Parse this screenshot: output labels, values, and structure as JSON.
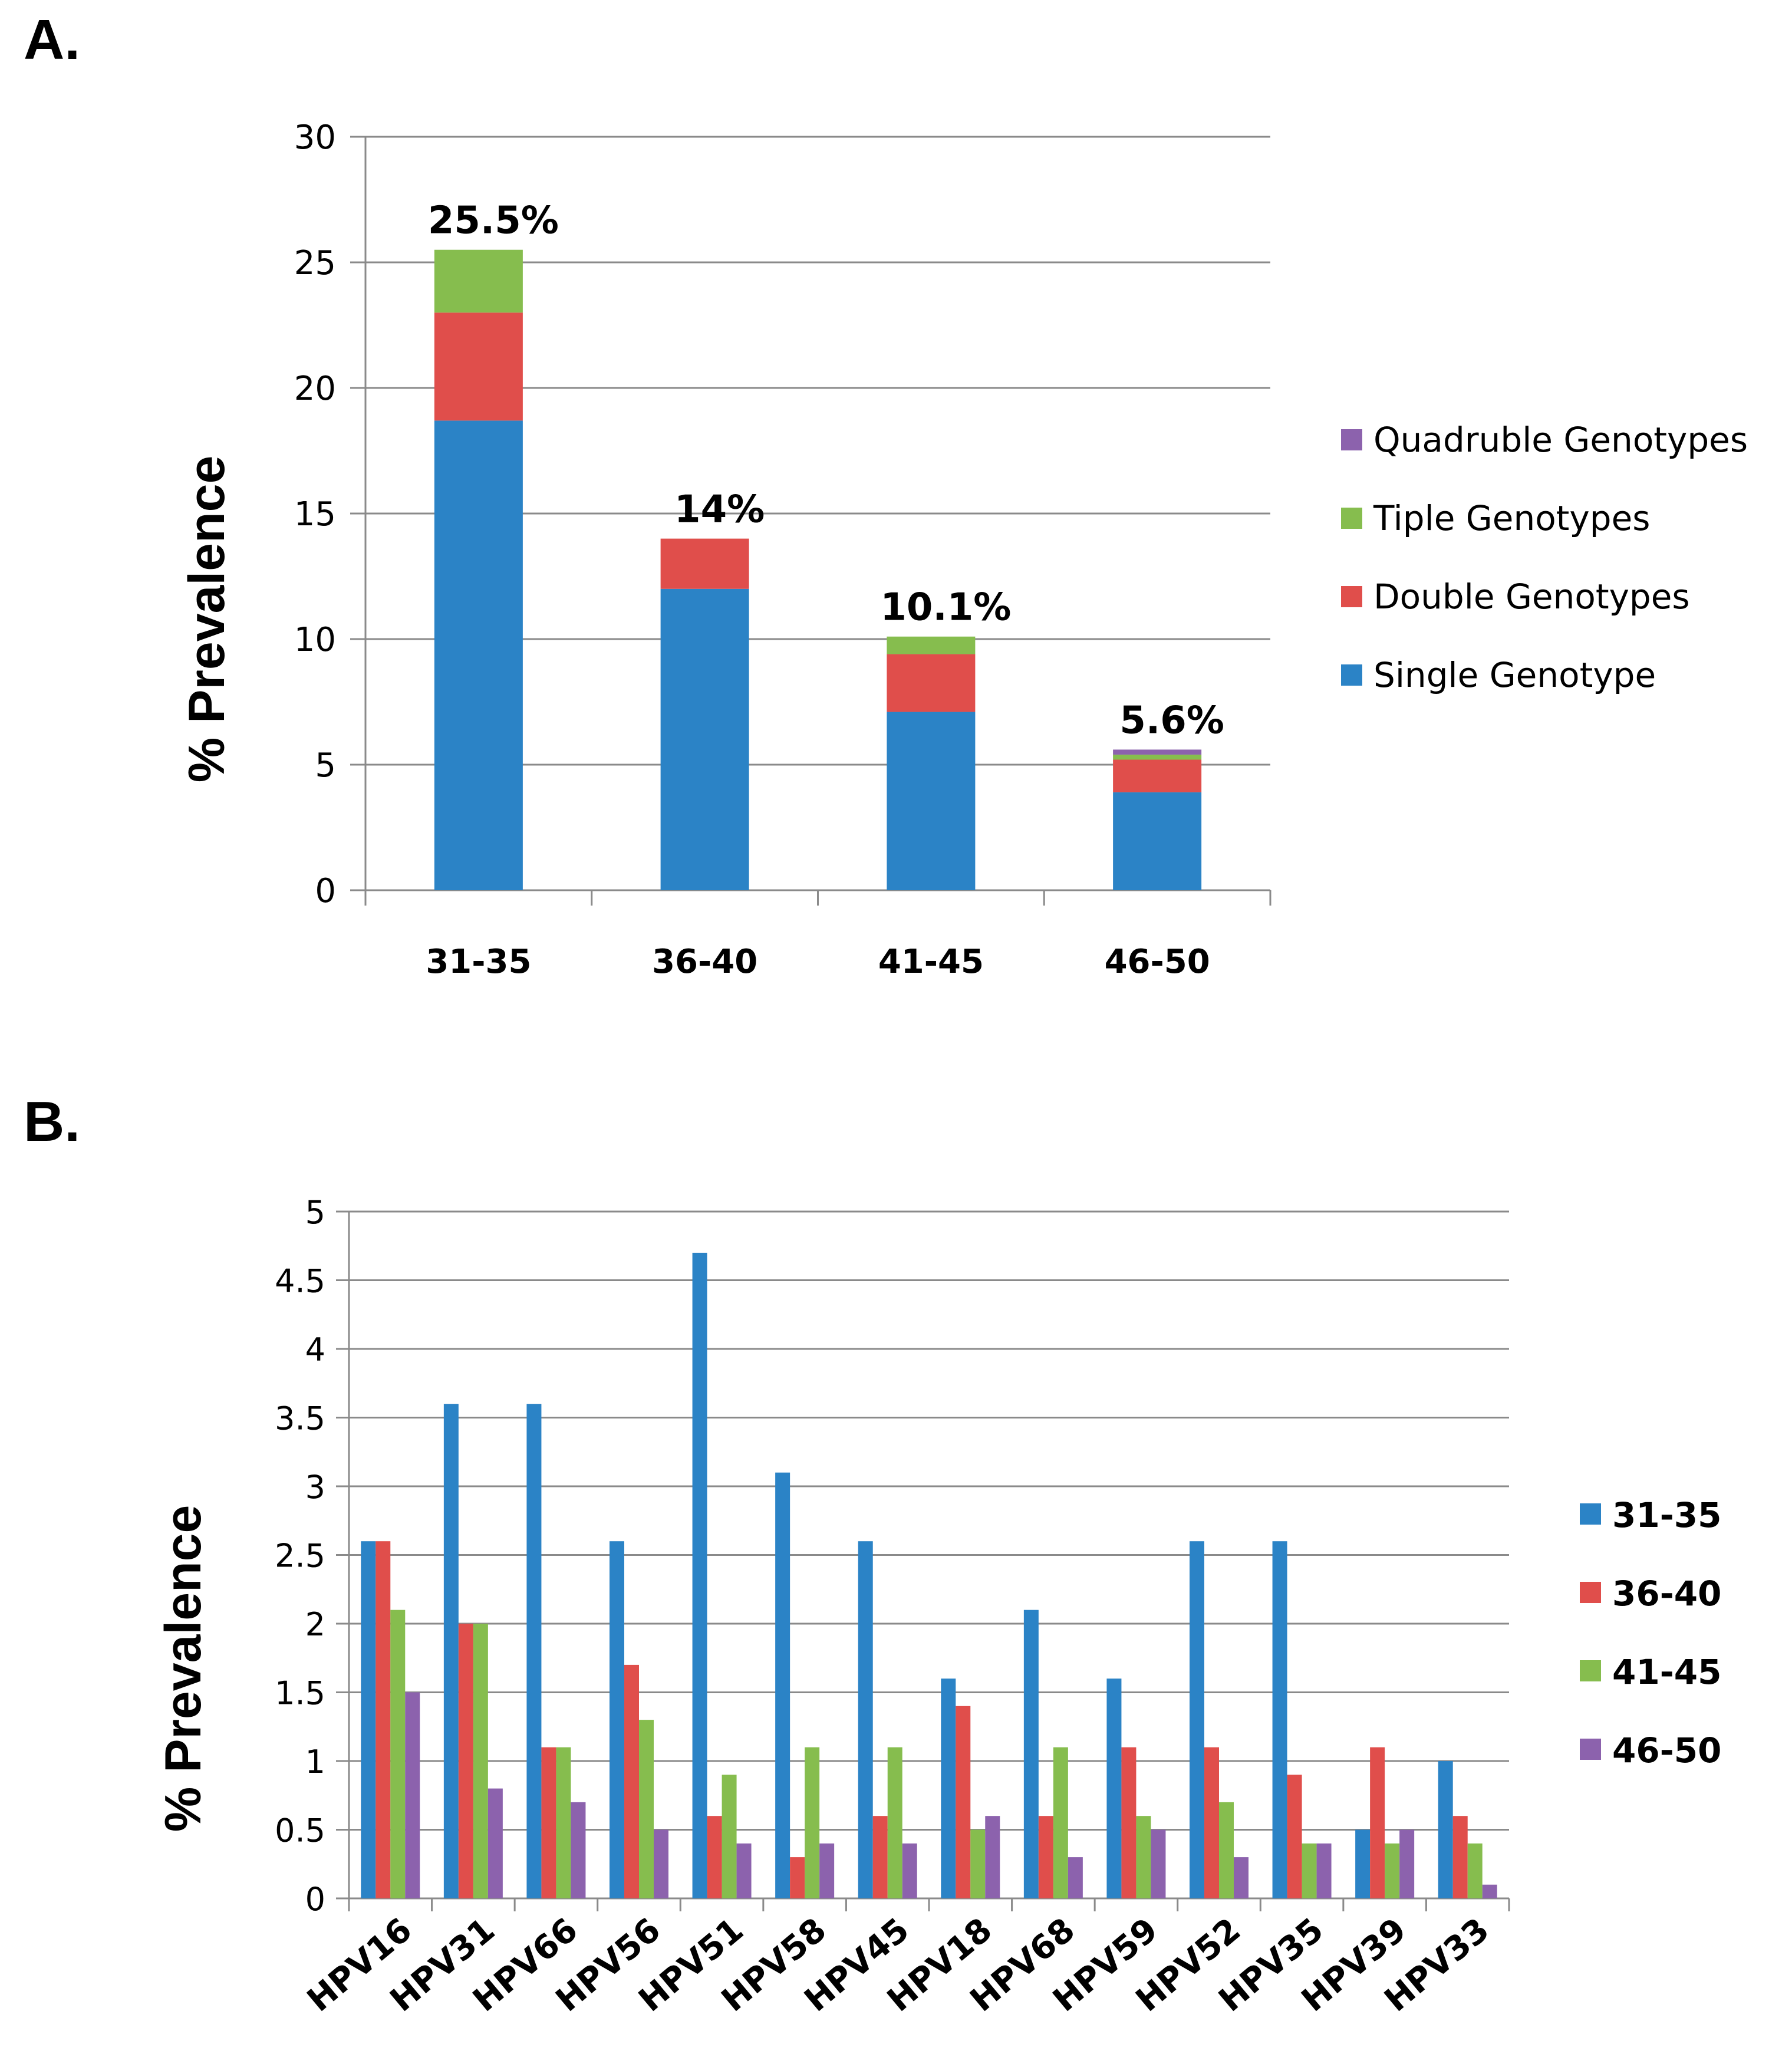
{
  "chart_data": [
    {
      "panel_label": "A.",
      "type": "bar",
      "stacked": true,
      "categories": [
        "31-35",
        "36-40",
        "41-45",
        "46-50"
      ],
      "series": [
        {
          "name": "Single Genotype",
          "color": "#2b83c6",
          "values": [
            18.7,
            12.0,
            7.1,
            3.9
          ]
        },
        {
          "name": "Double Genotypes",
          "color": "#e04e4b",
          "values": [
            4.3,
            2.0,
            2.3,
            1.3
          ]
        },
        {
          "name": "Tiple Genotypes",
          "color": "#86bd4e",
          "values": [
            2.5,
            0.0,
            0.7,
            0.2
          ]
        },
        {
          "name": "Quadruble Genotypes",
          "color": "#8c62ad",
          "values": [
            0.0,
            0.0,
            0.0,
            0.2
          ]
        }
      ],
      "bar_labels": [
        "25.5%",
        "14%",
        "10.1%",
        "5.6%"
      ],
      "ylabel": "% Prevalence",
      "ylim": [
        0,
        30
      ],
      "yticks": [
        0,
        5,
        10,
        15,
        20,
        25,
        30
      ],
      "grid": true,
      "legend_position": "right",
      "legend_order": [
        "Quadruble Genotypes",
        "Tiple Genotypes",
        "Double Genotypes",
        "Single Genotype"
      ]
    },
    {
      "panel_label": "B.",
      "type": "bar",
      "stacked": false,
      "categories": [
        "HPV16",
        "HPV31",
        "HPV66",
        "HPV56",
        "HPV51",
        "HPV58",
        "HPV45",
        "HPV18",
        "HPV68",
        "HPV59",
        "HPV52",
        "HPV35",
        "HPV39",
        "HPV33"
      ],
      "series": [
        {
          "name": "31-35",
          "color": "#2b83c6",
          "values": [
            2.6,
            3.6,
            3.6,
            2.6,
            4.7,
            3.1,
            2.6,
            1.6,
            2.1,
            1.6,
            2.6,
            2.6,
            0.5,
            1.0
          ]
        },
        {
          "name": "36-40",
          "color": "#e04e4b",
          "values": [
            2.6,
            2.0,
            1.1,
            1.7,
            0.6,
            0.3,
            0.6,
            1.4,
            0.6,
            1.1,
            1.1,
            0.9,
            1.1,
            0.6
          ]
        },
        {
          "name": "41-45",
          "color": "#86bd4e",
          "values": [
            2.1,
            2.0,
            1.1,
            1.3,
            0.9,
            1.1,
            1.1,
            0.5,
            1.1,
            0.6,
            0.7,
            0.4,
            0.4,
            0.4
          ]
        },
        {
          "name": "46-50",
          "color": "#8c62ad",
          "values": [
            1.5,
            0.8,
            0.7,
            0.5,
            0.4,
            0.4,
            0.4,
            0.6,
            0.3,
            0.5,
            0.3,
            0.4,
            0.5,
            0.1
          ]
        }
      ],
      "ylabel": "% Prevalence",
      "ylim": [
        0,
        5
      ],
      "yticks": [
        "0",
        "0.5",
        "1",
        "1.5",
        "2",
        "2.5",
        "3",
        "3.5",
        "4",
        "4.5",
        "5"
      ],
      "grid": true,
      "legend_position": "right"
    }
  ]
}
